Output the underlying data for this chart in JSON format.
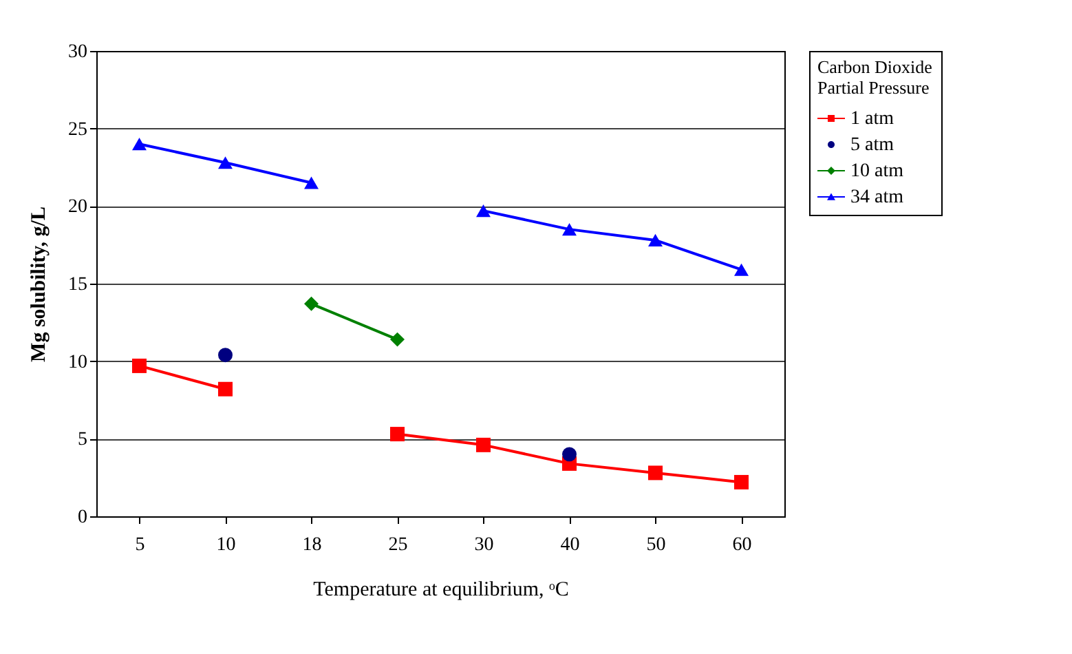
{
  "chart_data": {
    "type": "line",
    "xlabel": "Temperature at equilibrium, ᵒC",
    "ylabel": "Mg solubility, g/L",
    "legend_title": "Carbon Dioxide Partial Pressure",
    "categories": [
      "5",
      "10",
      "18",
      "25",
      "30",
      "40",
      "50",
      "60"
    ],
    "series": [
      {
        "name": "1 atm",
        "color": "#ff0000",
        "marker": "square",
        "values": [
          9.7,
          8.2,
          null,
          5.3,
          4.6,
          3.4,
          2.8,
          2.2
        ]
      },
      {
        "name": "5 atm",
        "type": "scatter",
        "color": "#000080",
        "marker": "circle",
        "values": [
          null,
          10.4,
          null,
          null,
          null,
          4.0,
          null,
          null
        ]
      },
      {
        "name": "10 atm",
        "color": "#008000",
        "marker": "diamond",
        "values": [
          null,
          null,
          13.7,
          11.4,
          null,
          null,
          null,
          null
        ]
      },
      {
        "name": "34 atm",
        "color": "#0000ff",
        "marker": "triangle",
        "values": [
          24.0,
          22.8,
          21.5,
          null,
          19.7,
          18.5,
          17.8,
          15.9
        ]
      }
    ],
    "ylim": [
      0,
      30
    ],
    "yticks": [
      0,
      5,
      10,
      15,
      20,
      25,
      30
    ],
    "grid": "y",
    "legend": "right",
    "line_style": "solid"
  }
}
